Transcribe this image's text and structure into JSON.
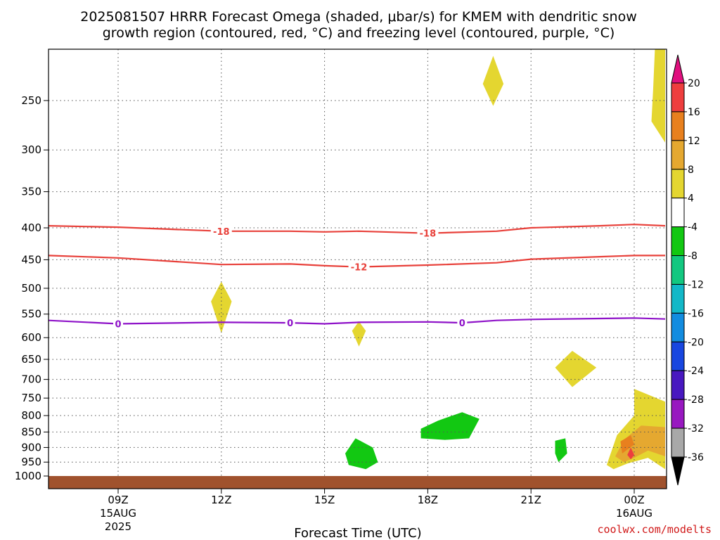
{
  "title": {
    "line1": "2025081507 HRRR Forecast Omega (shaded, μbar/s) for KMEM with dendritic snow",
    "line2": "growth region (contoured, red, °C) and freezing level (contoured, purple, °C)"
  },
  "credit": "coolwx.com/modelts",
  "colors": {
    "background": "#ffffff",
    "ground": "#a0522d",
    "dgz_contour": "#e8403a",
    "freezing_contour": "#8e12c8",
    "grid": "#555555"
  },
  "chart_data": {
    "type": "heatmap",
    "xlabel": "Forecast Time (UTC)",
    "ylabel": "",
    "xlim_hours": [
      6.6,
      24.9
    ],
    "ylim_hPa": [
      1015,
      180
    ],
    "y_scale": "log-pressure (inverted)",
    "grid": true,
    "y_ticks": [
      250,
      300,
      350,
      400,
      450,
      500,
      550,
      600,
      650,
      700,
      750,
      800,
      850,
      900,
      950,
      1000
    ],
    "x_ticks": [
      {
        "hour": 9,
        "label": "09Z",
        "sub1": "15AUG",
        "sub2": "2025"
      },
      {
        "hour": 12,
        "label": "12Z",
        "sub1": "",
        "sub2": ""
      },
      {
        "hour": 15,
        "label": "15Z",
        "sub1": "",
        "sub2": ""
      },
      {
        "hour": 18,
        "label": "18Z",
        "sub1": "",
        "sub2": ""
      },
      {
        "hour": 21,
        "label": "21Z",
        "sub1": "",
        "sub2": ""
      },
      {
        "hour": 24,
        "label": "00Z",
        "sub1": "16AUG",
        "sub2": ""
      }
    ],
    "ground_level_hPa": 1000,
    "colorbar": {
      "bins": [
        {
          "color": "#e0107e",
          "label": "20"
        },
        {
          "color": "#ee3e3e",
          "label": "16"
        },
        {
          "color": "#e8801e",
          "label": "12"
        },
        {
          "color": "#e5a830",
          "label": "8"
        },
        {
          "color": "#e4d630",
          "label": "4"
        },
        {
          "color": "#ffffff",
          "label": "-4"
        },
        {
          "color": "#12c812",
          "label": "-8"
        },
        {
          "color": "#12c880",
          "label": "-12"
        },
        {
          "color": "#12b8c8",
          "label": "-16"
        },
        {
          "color": "#128ce0",
          "label": "-20"
        },
        {
          "color": "#1846e0",
          "label": "-24"
        },
        {
          "color": "#4818c0",
          "label": "-28"
        },
        {
          "color": "#9818c0",
          "label": "-32"
        },
        {
          "color": "#a8a8a8",
          "label": "-36"
        },
        {
          "color": "#000000",
          "label": ""
        }
      ]
    },
    "contours": [
      {
        "name": "",
        "value": "-18",
        "color": "#e8403a",
        "points": [
          [
            6.6,
            397
          ],
          [
            9,
            399
          ],
          [
            12,
            405
          ],
          [
            14,
            405
          ],
          [
            15,
            406
          ],
          [
            16,
            405
          ],
          [
            18,
            408
          ],
          [
            20,
            405
          ],
          [
            21,
            400
          ],
          [
            23,
            397
          ],
          [
            24,
            395
          ],
          [
            24.9,
            397
          ]
        ],
        "labels_at_hours": [
          12,
          18
        ]
      },
      {
        "name": "",
        "value": "-12",
        "color": "#e8403a",
        "points": [
          [
            6.6,
            443
          ],
          [
            9,
            447
          ],
          [
            12,
            458
          ],
          [
            14,
            457
          ],
          [
            15,
            460
          ],
          [
            16,
            462
          ],
          [
            18,
            459
          ],
          [
            20,
            455
          ],
          [
            21,
            449
          ],
          [
            23,
            445
          ],
          [
            24,
            443
          ],
          [
            24.9,
            443
          ]
        ],
        "labels_at_hours": [
          16
        ]
      },
      {
        "name": "",
        "value": "0",
        "color": "#8e12c8",
        "points": [
          [
            6.6,
            563
          ],
          [
            9,
            570
          ],
          [
            12,
            567
          ],
          [
            14,
            568
          ],
          [
            15,
            570
          ],
          [
            16,
            567
          ],
          [
            18,
            566
          ],
          [
            19,
            568
          ],
          [
            20,
            563
          ],
          [
            21,
            561
          ],
          [
            23,
            559
          ],
          [
            24,
            558
          ],
          [
            24.9,
            560
          ]
        ],
        "labels_at_hours": [
          9,
          14,
          19
        ]
      }
    ],
    "omega_areas": [
      {
        "value_range": "4 to 8",
        "color": "#e4d630",
        "points": [
          [
            12,
            488
          ],
          [
            12.3,
            525
          ],
          [
            12,
            590
          ],
          [
            11.7,
            525
          ]
        ]
      },
      {
        "value_range": "4 to 8",
        "color": "#e4d630",
        "points": [
          [
            16,
            565
          ],
          [
            16.2,
            585
          ],
          [
            16,
            620
          ],
          [
            15.8,
            585
          ]
        ]
      },
      {
        "value_range": "4 to 8",
        "color": "#e4d630",
        "points": [
          [
            19.9,
            212
          ],
          [
            20.2,
            235
          ],
          [
            19.9,
            255
          ],
          [
            19.6,
            235
          ]
        ]
      },
      {
        "value_range": "4 to 8",
        "color": "#e4d630",
        "points": [
          [
            22.2,
            630
          ],
          [
            22.9,
            670
          ],
          [
            22.2,
            720
          ],
          [
            21.7,
            670
          ]
        ]
      },
      {
        "value_range": "4 to 8",
        "color": "#e4d630",
        "points": [
          [
            24.6,
            180
          ],
          [
            24.9,
            180
          ],
          [
            24.9,
            292
          ],
          [
            24.5,
            270
          ],
          [
            24.55,
            240
          ]
        ]
      },
      {
        "value_range": "4 to 8",
        "color": "#e4d630",
        "points": [
          [
            23.2,
            960
          ],
          [
            23.5,
            860
          ],
          [
            24,
            800
          ],
          [
            24,
            725
          ],
          [
            24.9,
            760
          ],
          [
            24.9,
            975
          ],
          [
            24.4,
            935
          ],
          [
            23.8,
            955
          ],
          [
            23.4,
            975
          ]
        ]
      },
      {
        "value_range": "8 to 12",
        "color": "#e5a830",
        "points": [
          [
            23.45,
            930
          ],
          [
            23.7,
            875
          ],
          [
            24.2,
            830
          ],
          [
            24.9,
            835
          ],
          [
            24.9,
            930
          ],
          [
            24.4,
            910
          ],
          [
            24,
            935
          ],
          [
            23.7,
            950
          ]
        ]
      },
      {
        "value_range": "12 to 16",
        "color": "#e8801e",
        "points": [
          [
            23.65,
            920
          ],
          [
            24,
            890
          ],
          [
            23.9,
            860
          ],
          [
            23.6,
            880
          ]
        ]
      },
      {
        "value_range": "16 to 20",
        "color": "#ee3e3e",
        "points": [
          [
            23.9,
            900
          ],
          [
            24,
            925
          ],
          [
            23.9,
            940
          ],
          [
            23.8,
            925
          ]
        ]
      },
      {
        "value_range": "-4 to -8",
        "color": "#12c812",
        "points": [
          [
            15.6,
            920
          ],
          [
            15.9,
            870
          ],
          [
            16.4,
            900
          ],
          [
            16.55,
            950
          ],
          [
            16.2,
            975
          ],
          [
            15.7,
            960
          ]
        ]
      },
      {
        "value_range": "-4 to -8",
        "color": "#12c812",
        "points": [
          [
            17.8,
            840
          ],
          [
            18.3,
            815
          ],
          [
            19,
            790
          ],
          [
            19.5,
            810
          ],
          [
            19.2,
            870
          ],
          [
            18.5,
            875
          ],
          [
            17.8,
            870
          ]
        ]
      },
      {
        "value_range": "-4 to -8",
        "color": "#12c812",
        "points": [
          [
            21.7,
            878
          ],
          [
            22,
            870
          ],
          [
            22.05,
            920
          ],
          [
            21.8,
            950
          ],
          [
            21.7,
            920
          ]
        ]
      }
    ]
  }
}
